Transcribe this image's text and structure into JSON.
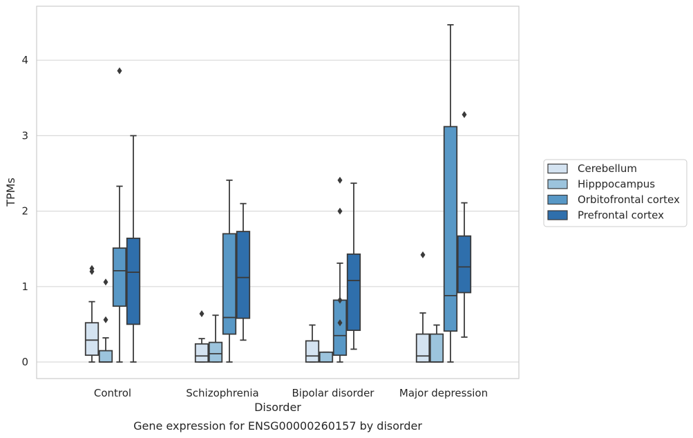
{
  "chart_data": {
    "type": "box",
    "title": "",
    "caption": "Gene expression for ENSG00000260157 by disorder",
    "xlabel": "Disorder",
    "ylabel": "TPMs",
    "ylim": [
      -0.22,
      4.7
    ],
    "yticks": [
      "0",
      "1",
      "2",
      "3",
      "4"
    ],
    "grid": "horizontal",
    "legend_position": "right",
    "categories": [
      "Control",
      "Schizophrenia",
      "Bipolar disorder",
      "Major depression"
    ],
    "series": [
      {
        "name": "Cerebellum",
        "color": "#d4e3f1",
        "boxes": [
          {
            "min": 0.0,
            "q1": 0.09,
            "median": 0.29,
            "q3": 0.52,
            "max": 0.8,
            "outliers": [
              1.2,
              1.24
            ]
          },
          {
            "min": 0.0,
            "q1": 0.0,
            "median": 0.08,
            "q3": 0.24,
            "max": 0.31,
            "outliers": [
              0.64
            ]
          },
          {
            "min": 0.0,
            "q1": 0.0,
            "median": 0.08,
            "q3": 0.28,
            "max": 0.49,
            "outliers": []
          },
          {
            "min": 0.0,
            "q1": 0.0,
            "median": 0.08,
            "q3": 0.37,
            "max": 0.65,
            "outliers": [
              1.42
            ]
          }
        ]
      },
      {
        "name": "Hipppocampus",
        "color": "#9cc4dd",
        "boxes": [
          {
            "min": 0.0,
            "q1": 0.0,
            "median": 0.0,
            "q3": 0.15,
            "max": 0.32,
            "outliers": [
              0.56,
              1.06
            ]
          },
          {
            "min": 0.0,
            "q1": 0.0,
            "median": 0.11,
            "q3": 0.26,
            "max": 0.62,
            "outliers": []
          },
          {
            "min": 0.0,
            "q1": 0.0,
            "median": 0.0,
            "q3": 0.13,
            "max": 0.13,
            "outliers": []
          },
          {
            "min": 0.0,
            "q1": 0.0,
            "median": 0.0,
            "q3": 0.37,
            "max": 0.49,
            "outliers": []
          }
        ]
      },
      {
        "name": "Orbitofrontal cortex",
        "color": "#5898c6",
        "boxes": [
          {
            "min": 0.0,
            "q1": 0.74,
            "median": 1.21,
            "q3": 1.51,
            "max": 2.33,
            "outliers": [
              3.86
            ]
          },
          {
            "min": 0.0,
            "q1": 0.37,
            "median": 0.59,
            "q3": 1.7,
            "max": 2.41,
            "outliers": []
          },
          {
            "min": 0.0,
            "q1": 0.09,
            "median": 0.35,
            "q3": 0.82,
            "max": 1.31,
            "outliers": [
              0.52,
              0.82,
              2.0,
              2.41
            ]
          },
          {
            "min": 0.0,
            "q1": 0.41,
            "median": 0.88,
            "q3": 3.12,
            "max": 4.47,
            "outliers": []
          }
        ]
      },
      {
        "name": "Prefrontal cortex",
        "color": "#2f6fac",
        "boxes": [
          {
            "min": 0.0,
            "q1": 0.5,
            "median": 1.19,
            "q3": 1.64,
            "max": 3.0,
            "outliers": []
          },
          {
            "min": 0.29,
            "q1": 0.58,
            "median": 1.12,
            "q3": 1.73,
            "max": 2.1,
            "outliers": []
          },
          {
            "min": 0.17,
            "q1": 0.42,
            "median": 1.08,
            "q3": 1.43,
            "max": 2.37,
            "outliers": []
          },
          {
            "min": 0.33,
            "q1": 0.92,
            "median": 1.26,
            "q3": 1.67,
            "max": 2.11,
            "outliers": [
              3.28
            ]
          }
        ]
      }
    ]
  }
}
